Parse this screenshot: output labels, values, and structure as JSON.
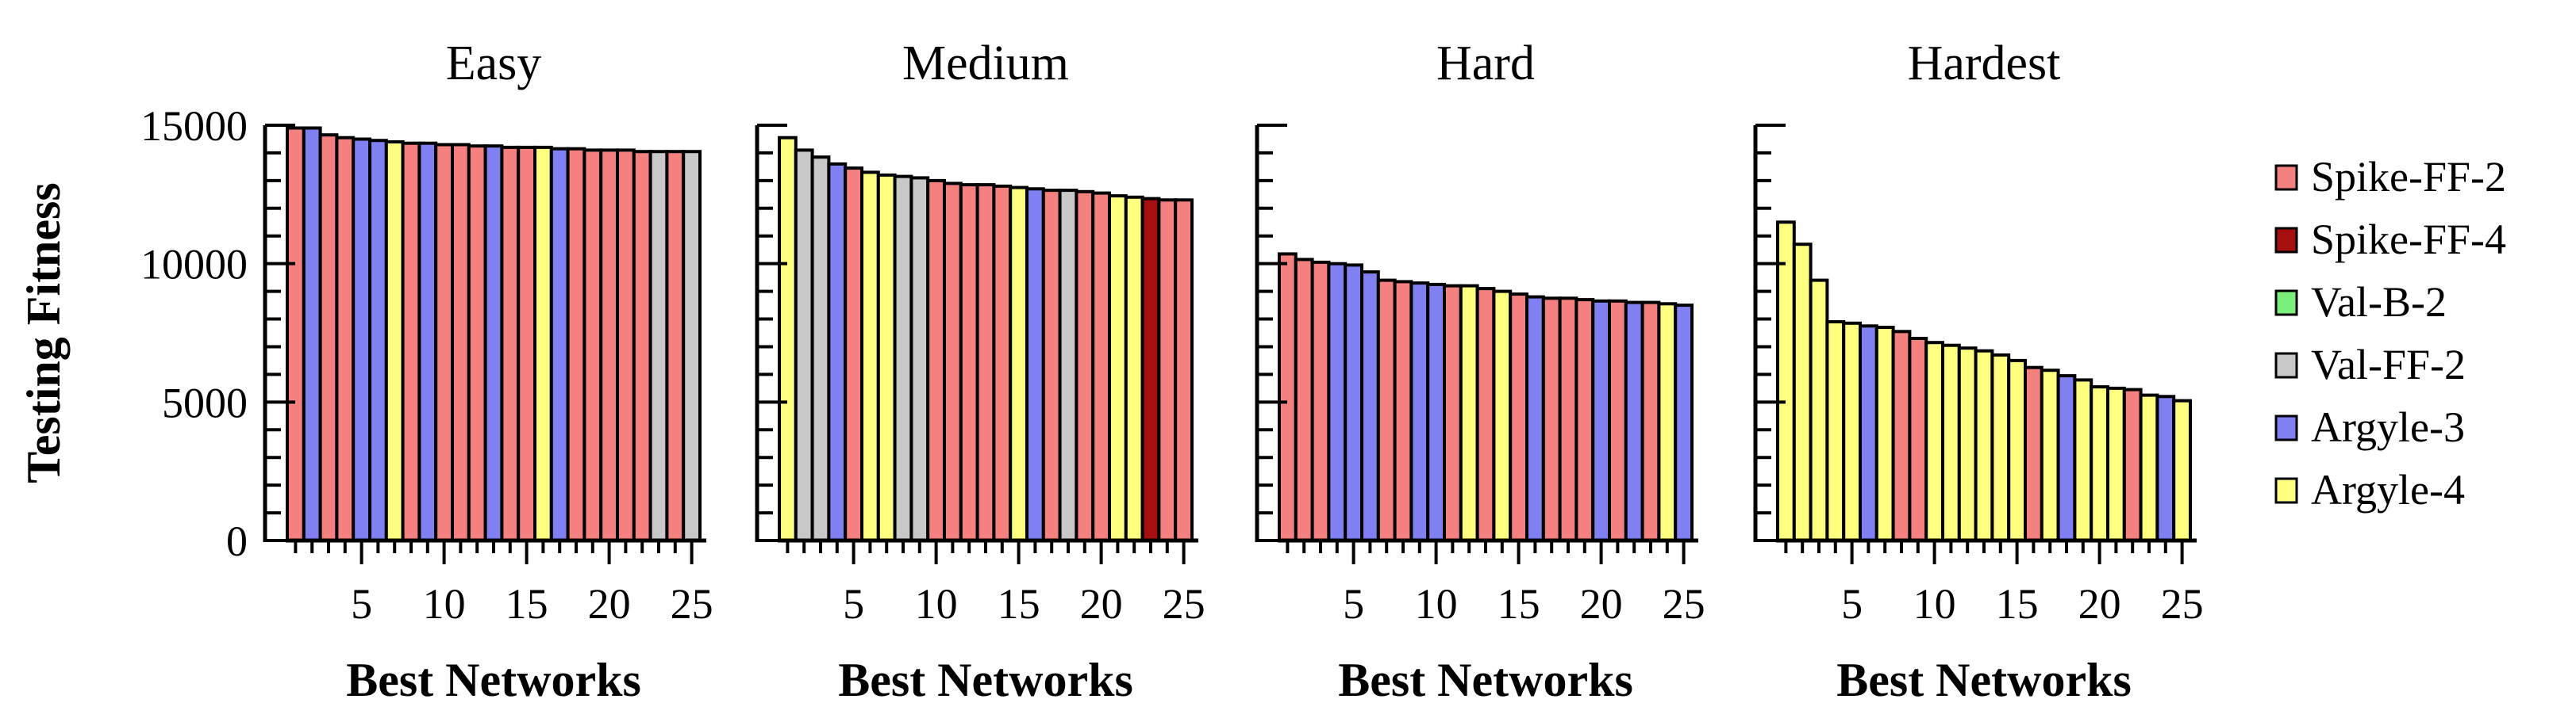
{
  "chart_data": {
    "type": "bar",
    "ylabel": "Testing Fitness",
    "xlabel": "Best Networks",
    "ylim": [
      0,
      15000
    ],
    "yticks": [
      0,
      5000,
      10000,
      15000
    ],
    "xticks": [
      5,
      10,
      15,
      20,
      25
    ],
    "grid": false,
    "legend_placement": "right",
    "colors": {
      "Spike-FF-2": "#f58080",
      "Spike-FF-4": "#a50f0f",
      "Val-B-2": "#7af07a",
      "Val-FF-2": "#c8c8c8",
      "Argyle-3": "#8080f2",
      "Argyle-4": "#ffff80"
    },
    "legend": [
      "Spike-FF-2",
      "Spike-FF-4",
      "Val-B-2",
      "Val-FF-2",
      "Argyle-3",
      "Argyle-4"
    ],
    "panels": [
      {
        "title": "Easy",
        "values": [
          14900,
          14900,
          14650,
          14550,
          14500,
          14450,
          14400,
          14350,
          14350,
          14300,
          14300,
          14250,
          14250,
          14200,
          14200,
          14200,
          14150,
          14150,
          14100,
          14100,
          14100,
          14050,
          14050,
          14050,
          14050
        ],
        "categories": [
          "Spike-FF-2",
          "Argyle-3",
          "Spike-FF-2",
          "Spike-FF-2",
          "Argyle-3",
          "Argyle-3",
          "Argyle-4",
          "Spike-FF-2",
          "Argyle-3",
          "Spike-FF-2",
          "Spike-FF-2",
          "Spike-FF-2",
          "Argyle-3",
          "Spike-FF-2",
          "Spike-FF-2",
          "Argyle-4",
          "Argyle-3",
          "Spike-FF-2",
          "Spike-FF-2",
          "Spike-FF-2",
          "Spike-FF-2",
          "Spike-FF-2",
          "Val-FF-2",
          "Spike-FF-2",
          "Val-FF-2"
        ]
      },
      {
        "title": "Medium",
        "values": [
          14550,
          14100,
          13850,
          13600,
          13450,
          13300,
          13200,
          13150,
          13100,
          13000,
          12900,
          12850,
          12850,
          12800,
          12750,
          12700,
          12650,
          12650,
          12600,
          12550,
          12450,
          12400,
          12350,
          12300,
          12300
        ],
        "categories": [
          "Argyle-4",
          "Val-FF-2",
          "Val-FF-2",
          "Argyle-3",
          "Spike-FF-2",
          "Argyle-4",
          "Argyle-4",
          "Val-FF-2",
          "Val-FF-2",
          "Spike-FF-2",
          "Spike-FF-2",
          "Spike-FF-2",
          "Spike-FF-2",
          "Spike-FF-2",
          "Argyle-4",
          "Argyle-3",
          "Spike-FF-2",
          "Val-FF-2",
          "Spike-FF-2",
          "Spike-FF-2",
          "Argyle-4",
          "Argyle-4",
          "Spike-FF-4",
          "Spike-FF-2",
          "Spike-FF-2"
        ]
      },
      {
        "title": "Hard",
        "values": [
          10350,
          10150,
          10050,
          10000,
          9950,
          9700,
          9400,
          9350,
          9300,
          9250,
          9200,
          9200,
          9100,
          9000,
          8900,
          8800,
          8750,
          8750,
          8700,
          8650,
          8650,
          8600,
          8600,
          8550,
          8500
        ],
        "categories": [
          "Spike-FF-2",
          "Spike-FF-2",
          "Spike-FF-2",
          "Argyle-3",
          "Argyle-3",
          "Argyle-3",
          "Spike-FF-2",
          "Spike-FF-2",
          "Argyle-3",
          "Argyle-3",
          "Spike-FF-2",
          "Argyle-4",
          "Spike-FF-2",
          "Argyle-4",
          "Spike-FF-2",
          "Argyle-3",
          "Spike-FF-2",
          "Spike-FF-2",
          "Spike-FF-2",
          "Argyle-3",
          "Spike-FF-2",
          "Argyle-3",
          "Spike-FF-2",
          "Argyle-4",
          "Argyle-3"
        ]
      },
      {
        "title": "Hardest",
        "values": [
          11500,
          10700,
          9400,
          7900,
          7850,
          7750,
          7700,
          7550,
          7300,
          7150,
          7050,
          6950,
          6850,
          6700,
          6500,
          6250,
          6150,
          5950,
          5800,
          5550,
          5500,
          5450,
          5250,
          5200,
          5050
        ],
        "categories": [
          "Argyle-4",
          "Argyle-4",
          "Argyle-4",
          "Argyle-4",
          "Argyle-4",
          "Argyle-3",
          "Argyle-4",
          "Spike-FF-2",
          "Spike-FF-2",
          "Argyle-4",
          "Argyle-4",
          "Argyle-4",
          "Argyle-4",
          "Argyle-4",
          "Argyle-4",
          "Spike-FF-2",
          "Argyle-4",
          "Argyle-3",
          "Argyle-4",
          "Argyle-4",
          "Argyle-4",
          "Spike-FF-2",
          "Argyle-4",
          "Argyle-3",
          "Argyle-4"
        ]
      }
    ]
  }
}
